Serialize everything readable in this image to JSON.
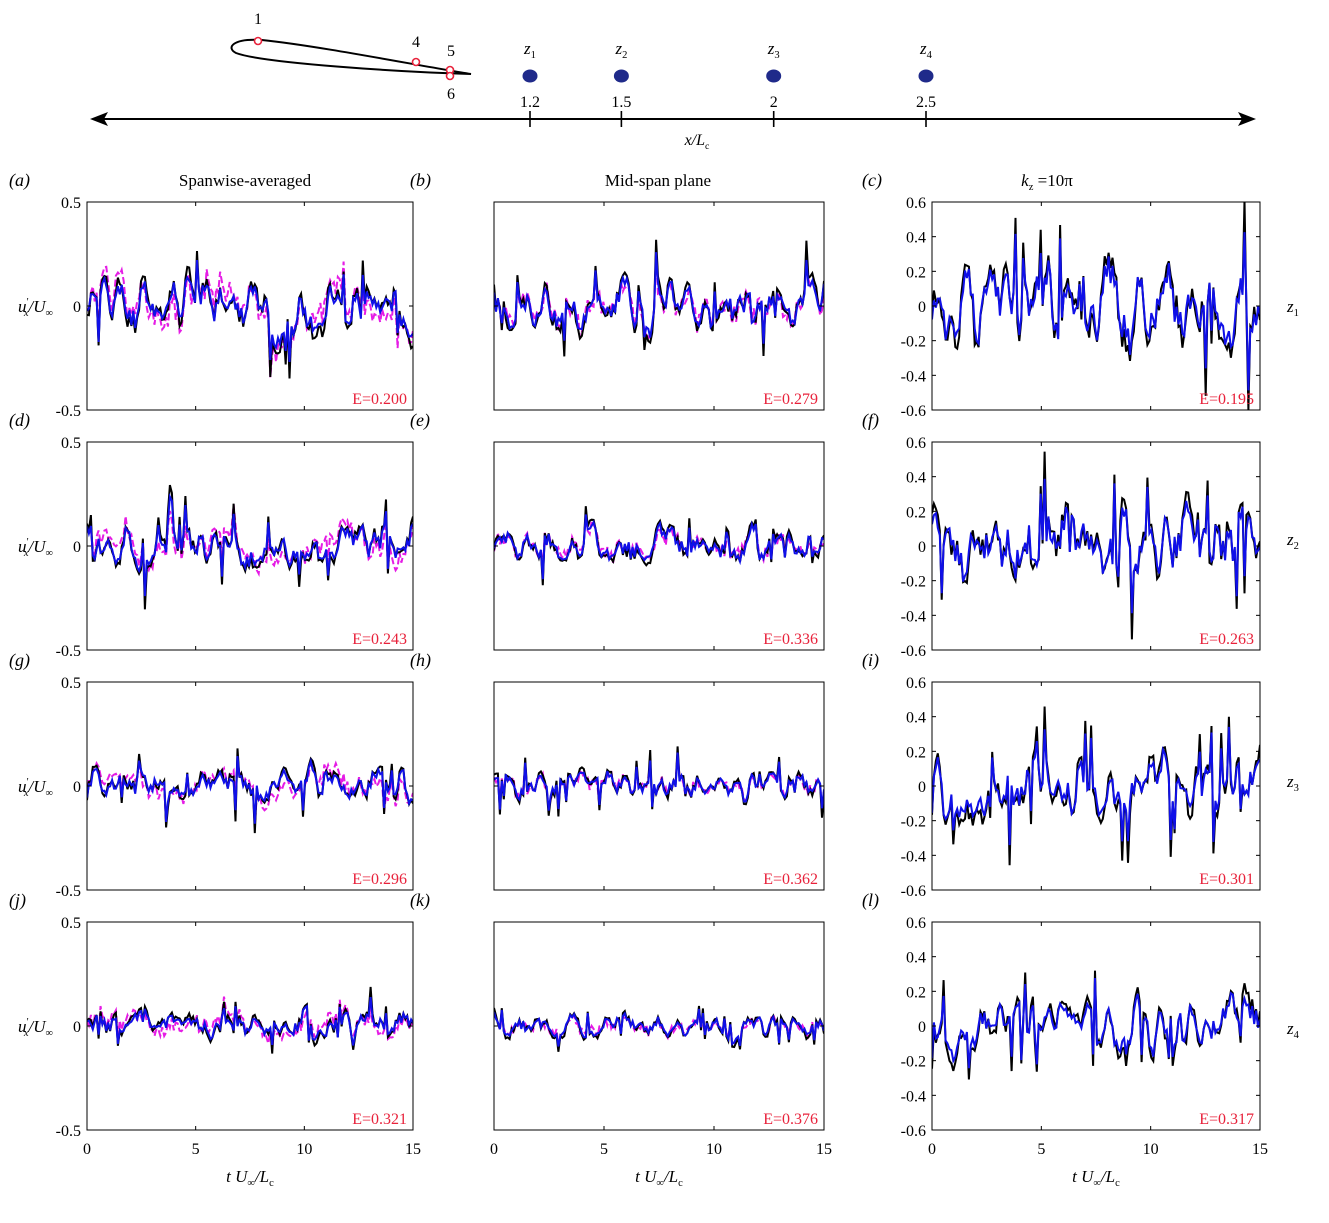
{
  "diagram": {
    "probes": [
      "1",
      "4",
      "5",
      "6"
    ],
    "stations": [
      {
        "name": "z",
        "sub": "1",
        "x": 1.2,
        "label": "1.2"
      },
      {
        "name": "z",
        "sub": "2",
        "x": 1.5,
        "label": "1.5"
      },
      {
        "name": "z",
        "sub": "3",
        "x": 2,
        "label": "2"
      },
      {
        "name": "z",
        "sub": "4",
        "x": 2.5,
        "label": "2.5"
      }
    ],
    "axis_label_main": "x/L",
    "axis_label_sub": "c"
  },
  "columns": [
    {
      "title": "Spanwise-averaged"
    },
    {
      "title": "Mid-span plane"
    },
    {
      "title_main": "k",
      "title_sub": "z",
      "title_rest": " =10π"
    }
  ],
  "row_labels": [
    {
      "main": "z",
      "sub": "1"
    },
    {
      "main": "z",
      "sub": "2"
    },
    {
      "main": "z",
      "sub": "3"
    },
    {
      "main": "z",
      "sub": "4"
    }
  ],
  "y_label": {
    "main": "u",
    "sup": "′",
    "sub": "x",
    "rest": "/U",
    "inf": "∞"
  },
  "x_label": {
    "main": "t U",
    "inf": "∞",
    "rest": "/L",
    "sub": "c"
  },
  "colors": {
    "black": "#000000",
    "blue": "#1010e8",
    "magenta": "#e51ce5",
    "error": "#e8223b"
  },
  "chart_data": [
    {
      "panel": "(a)",
      "type": "line",
      "row": 0,
      "col": 0,
      "E_label": "E=0.200",
      "xlim": [
        0,
        15
      ],
      "ylim": [
        -0.5,
        0.5
      ],
      "yticks": [
        "0.5",
        "0",
        "-0.5"
      ],
      "xticks": [],
      "amp": 0.11,
      "seed": 1
    },
    {
      "panel": "(b)",
      "type": "line",
      "row": 0,
      "col": 1,
      "E_label": "E=0.279",
      "xlim": [
        0,
        15
      ],
      "ylim": [
        -0.5,
        0.5
      ],
      "yticks": [],
      "xticks": [],
      "amp": 0.1,
      "seed": 2
    },
    {
      "panel": "(c)",
      "type": "line",
      "row": 0,
      "col": 2,
      "E_label": "E=0.195",
      "xlim": [
        0,
        15
      ],
      "ylim": [
        -0.6,
        0.6
      ],
      "yticks": [
        "0.6",
        "0.4",
        "0.2",
        "0",
        "-0.2",
        "-0.4",
        "-0.6"
      ],
      "xticks": [],
      "amp": 0.22,
      "seed": 3
    },
    {
      "panel": "(d)",
      "type": "line",
      "row": 1,
      "col": 0,
      "E_label": "E=0.243",
      "xlim": [
        0,
        15
      ],
      "ylim": [
        -0.5,
        0.5
      ],
      "yticks": [
        "0.5",
        "0",
        "-0.5"
      ],
      "xticks": [],
      "amp": 0.09,
      "seed": 4
    },
    {
      "panel": "(e)",
      "type": "line",
      "row": 1,
      "col": 1,
      "E_label": "E=0.336",
      "xlim": [
        0,
        15
      ],
      "ylim": [
        -0.5,
        0.5
      ],
      "yticks": [],
      "xticks": [],
      "amp": 0.07,
      "seed": 5
    },
    {
      "panel": "(f)",
      "type": "line",
      "row": 1,
      "col": 2,
      "E_label": "E=0.263",
      "xlim": [
        0,
        15
      ],
      "ylim": [
        -0.6,
        0.6
      ],
      "yticks": [
        "0.6",
        "0.4",
        "0.2",
        "0",
        "-0.2",
        "-0.4",
        "-0.6"
      ],
      "xticks": [],
      "amp": 0.18,
      "seed": 6
    },
    {
      "panel": "(g)",
      "type": "line",
      "row": 2,
      "col": 0,
      "E_label": "E=0.296",
      "xlim": [
        0,
        15
      ],
      "ylim": [
        -0.5,
        0.5
      ],
      "yticks": [
        "0.5",
        "0",
        "-0.5"
      ],
      "xticks": [],
      "amp": 0.07,
      "seed": 7
    },
    {
      "panel": "(h)",
      "type": "line",
      "row": 2,
      "col": 1,
      "E_label": "E=0.362",
      "xlim": [
        0,
        15
      ],
      "ylim": [
        -0.5,
        0.5
      ],
      "yticks": [],
      "xticks": [],
      "amp": 0.06,
      "seed": 8
    },
    {
      "panel": "(i)",
      "type": "line",
      "row": 2,
      "col": 2,
      "E_label": "E=0.301",
      "xlim": [
        0,
        15
      ],
      "ylim": [
        -0.6,
        0.6
      ],
      "yticks": [
        "0.6",
        "0.4",
        "0.2",
        "0",
        "-0.2",
        "-0.4",
        "-0.6"
      ],
      "xticks": [],
      "amp": 0.16,
      "seed": 9
    },
    {
      "panel": "(j)",
      "type": "line",
      "row": 3,
      "col": 0,
      "E_label": "E=0.321",
      "xlim": [
        0,
        15
      ],
      "ylim": [
        -0.5,
        0.5
      ],
      "yticks": [
        "0.5",
        "0",
        "-0.5"
      ],
      "xticks": [
        "0",
        "5",
        "10",
        "15"
      ],
      "amp": 0.06,
      "seed": 10
    },
    {
      "panel": "(k)",
      "type": "line",
      "row": 3,
      "col": 1,
      "E_label": "E=0.376",
      "xlim": [
        0,
        15
      ],
      "ylim": [
        -0.5,
        0.5
      ],
      "yticks": [],
      "xticks": [
        "0",
        "5",
        "10",
        "15"
      ],
      "amp": 0.05,
      "seed": 11
    },
    {
      "panel": "(l)",
      "type": "line",
      "row": 3,
      "col": 2,
      "E_label": "E=0.317",
      "xlim": [
        0,
        15
      ],
      "ylim": [
        -0.6,
        0.6
      ],
      "yticks": [
        "0.6",
        "0.4",
        "0.2",
        "0",
        "-0.2",
        "-0.4",
        "-0.6"
      ],
      "xticks": [
        "0",
        "5",
        "10",
        "15"
      ],
      "amp": 0.14,
      "seed": 12
    }
  ]
}
